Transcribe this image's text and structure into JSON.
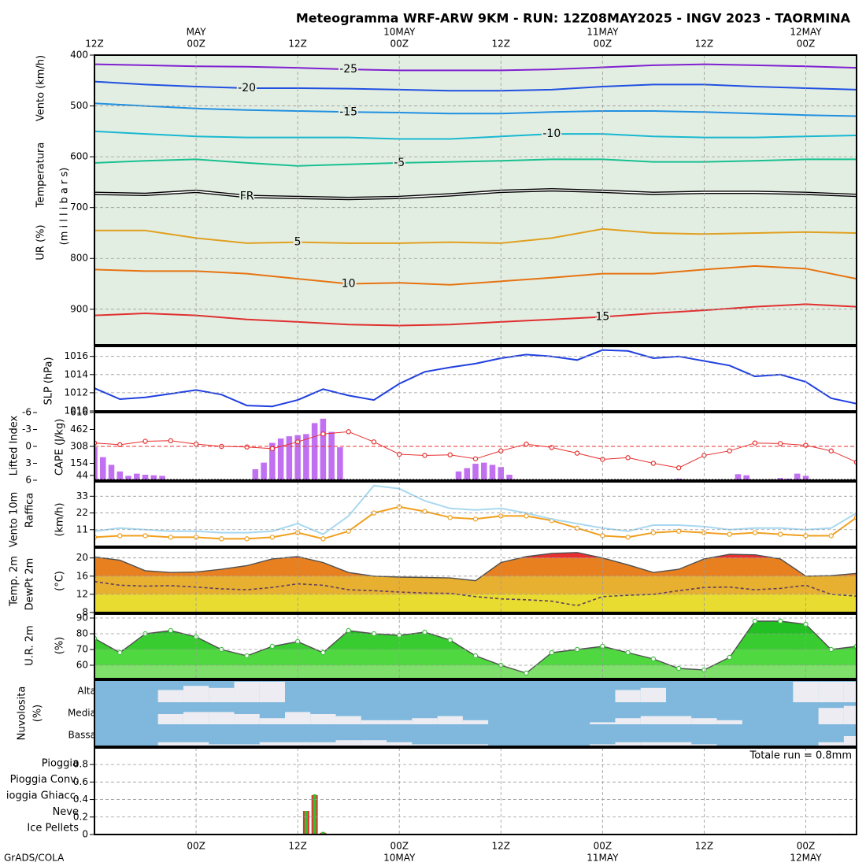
{
  "title": "Meteogramma WRF-ARW 9KM - RUN: 12Z08MAY2025 - INGV 2023 - TAORMINA",
  "footer": "GrADS/COLA",
  "time_axis": {
    "xlim": [
      0,
      90
    ],
    "top_ticks": [
      {
        "value": 0,
        "label": "12Z"
      },
      {
        "value": 12,
        "label": "00Z"
      },
      {
        "value": 24,
        "label": "12Z"
      },
      {
        "value": 36,
        "label": "00Z"
      },
      {
        "value": 48,
        "label": "12Z"
      },
      {
        "value": 60,
        "label": "00Z"
      },
      {
        "value": 72,
        "label": "12Z"
      },
      {
        "value": 84,
        "label": "00Z"
      }
    ],
    "top_dates": [
      {
        "value": 12,
        "label": "MAY"
      },
      {
        "value": 36,
        "label": "10MAY"
      },
      {
        "value": 60,
        "label": "11MAY"
      },
      {
        "value": 84,
        "label": "12MAY"
      }
    ],
    "bottom_ticks": [
      {
        "value": 12,
        "label": "00Z"
      },
      {
        "value": 24,
        "label": "12Z"
      },
      {
        "value": 36,
        "label": "00Z"
      },
      {
        "value": 48,
        "label": "12Z"
      },
      {
        "value": 60,
        "label": "00Z"
      },
      {
        "value": 72,
        "label": "12Z"
      },
      {
        "value": 84,
        "label": "00Z"
      }
    ],
    "bottom_dates": [
      {
        "value": 36,
        "label": "10MAY"
      },
      {
        "value": 60,
        "label": "11MAY"
      },
      {
        "value": 84,
        "label": "12MAY"
      }
    ]
  },
  "chart_data": [
    {
      "type": "line",
      "legend": "contour",
      "background": "#e3eee3",
      "grid": "both",
      "axis_labels": [
        {
          "text": "Vento (km/h)",
          "color": "#000000"
        },
        {
          "text": "Temperatura",
          "color": "#e07020"
        },
        {
          "text": "UR (%)",
          "color": "#000000"
        },
        {
          "text": "(m i l l i b a r s)",
          "color": "#000000"
        }
      ],
      "ylim": [
        970,
        400
      ],
      "yticks": [
        400,
        500,
        600,
        700,
        800,
        900
      ],
      "x": [
        0,
        6,
        12,
        18,
        24,
        30,
        36,
        42,
        48,
        54,
        60,
        66,
        72,
        78,
        84,
        90
      ],
      "series": [
        {
          "name": "-25",
          "color": "#8020d0",
          "values": [
            418,
            420,
            422,
            423,
            425,
            428,
            430,
            430,
            430,
            428,
            424,
            420,
            418,
            420,
            422,
            425
          ]
        },
        {
          "name": "-20",
          "color": "#2050e0",
          "values": [
            452,
            458,
            462,
            465,
            465,
            466,
            468,
            470,
            470,
            468,
            462,
            458,
            458,
            462,
            465,
            468
          ]
        },
        {
          "name": "-15",
          "color": "#2090e0",
          "values": [
            495,
            500,
            505,
            508,
            510,
            512,
            513,
            515,
            515,
            512,
            510,
            510,
            512,
            515,
            518,
            520
          ]
        },
        {
          "name": "-10",
          "color": "#18b8d0",
          "values": [
            550,
            555,
            560,
            562,
            562,
            562,
            565,
            565,
            560,
            555,
            555,
            560,
            562,
            562,
            560,
            558
          ]
        },
        {
          "name": "-5",
          "color": "#18c090",
          "values": [
            612,
            608,
            605,
            612,
            618,
            615,
            612,
            610,
            608,
            605,
            605,
            610,
            610,
            608,
            605,
            605
          ]
        },
        {
          "name": "FR",
          "color": "#000000",
          "double": true,
          "values": [
            672,
            674,
            668,
            678,
            680,
            682,
            680,
            675,
            668,
            665,
            668,
            672,
            670,
            670,
            672,
            676
          ]
        },
        {
          "name": "5",
          "color": "#e0a020",
          "values": [
            745,
            745,
            760,
            770,
            768,
            770,
            770,
            768,
            770,
            760,
            742,
            750,
            752,
            750,
            748,
            750
          ]
        },
        {
          "name": "10",
          "color": "#e67310",
          "values": [
            822,
            825,
            825,
            830,
            840,
            850,
            848,
            852,
            845,
            838,
            830,
            830,
            822,
            815,
            820,
            840
          ]
        },
        {
          "name": "15",
          "color": "#e03030",
          "values": [
            912,
            908,
            912,
            920,
            925,
            930,
            932,
            930,
            925,
            920,
            915,
            908,
            902,
            895,
            890,
            895
          ]
        }
      ]
    },
    {
      "type": "line",
      "legend": "axis",
      "grid": "both",
      "ylim": [
        1010,
        1017.1
      ],
      "yticks": [
        1010,
        1012,
        1014,
        1016
      ],
      "x": [
        0,
        3,
        6,
        9,
        12,
        15,
        18,
        21,
        24,
        27,
        30,
        33,
        36,
        39,
        42,
        45,
        48,
        51,
        54,
        57,
        60,
        63,
        66,
        69,
        72,
        75,
        78,
        81,
        84,
        87,
        90
      ],
      "series": [
        {
          "name": "SLP (hPa)",
          "color": "#2040e0",
          "values": [
            1012.5,
            1011.3,
            1011.5,
            1011.9,
            1012.3,
            1011.8,
            1010.6,
            1010.5,
            1011.2,
            1012.4,
            1011.7,
            1011.2,
            1013.0,
            1014.3,
            1014.8,
            1015.2,
            1015.8,
            1016.2,
            1016.0,
            1015.6,
            1016.7,
            1016.6,
            1015.8,
            1016.0,
            1015.5,
            1015.0,
            1013.8,
            1014.0,
            1013.2,
            1011.4,
            1010.8
          ]
        }
      ]
    },
    {
      "type": "combo",
      "legend": "axis",
      "grid": "x",
      "zero_line": true,
      "ylim": [
        6,
        -6
      ],
      "yticks": [
        -6,
        -3,
        0,
        3,
        6
      ],
      "y2lim": [
        0,
        616
      ],
      "y2ticks": [
        44,
        154,
        308,
        462,
        616
      ],
      "series": [
        {
          "name": "CAPE (J/kg)",
          "type": "bar",
          "axis": "y2",
          "color": "#c070f0",
          "x": [
            0,
            1,
            2,
            3,
            4,
            5,
            6,
            7,
            8,
            19,
            20,
            21,
            22,
            23,
            24,
            25,
            26,
            27,
            28,
            29,
            43,
            44,
            45,
            46,
            47,
            48,
            49,
            69,
            76,
            77,
            80,
            81,
            82,
            83,
            84
          ],
          "values": [
            300,
            210,
            140,
            80,
            40,
            60,
            50,
            45,
            40,
            100,
            160,
            340,
            380,
            400,
            410,
            420,
            520,
            560,
            440,
            300,
            80,
            110,
            150,
            160,
            140,
            120,
            50,
            15,
            55,
            45,
            10,
            20,
            15,
            60,
            40
          ]
        },
        {
          "name": "Lifted Index",
          "type": "line",
          "color": "#e83030",
          "marker": true,
          "x": [
            0,
            3,
            6,
            9,
            12,
            15,
            18,
            21,
            24,
            27,
            30,
            33,
            36,
            39,
            42,
            45,
            48,
            51,
            54,
            57,
            60,
            63,
            66,
            69,
            72,
            75,
            78,
            81,
            84,
            87,
            90
          ],
          "values": [
            -0.6,
            -0.3,
            -0.9,
            -1.0,
            -0.4,
            0,
            0.1,
            0.4,
            -0.8,
            -2.2,
            -2.6,
            -0.8,
            1.4,
            1.6,
            1.5,
            2.2,
            0.8,
            -0.4,
            0.2,
            1.2,
            2.3,
            2.0,
            3.0,
            3.8,
            1.6,
            0.8,
            -0.6,
            -0.5,
            -0.2,
            0.8,
            2.8
          ]
        }
      ]
    },
    {
      "type": "line",
      "legend": "axis",
      "grid": "both",
      "axis_labels": [
        {
          "text": "(km/h)",
          "color": "#000000"
        }
      ],
      "ylim": [
        0,
        42.5
      ],
      "yticks": [
        11,
        22,
        33
      ],
      "x": [
        0,
        3,
        6,
        9,
        12,
        15,
        18,
        21,
        24,
        27,
        30,
        33,
        36,
        39,
        42,
        45,
        48,
        51,
        54,
        57,
        60,
        63,
        66,
        69,
        72,
        75,
        78,
        81,
        84,
        87,
        90
      ],
      "series": [
        {
          "name": "Vento 10m",
          "color": "#f0a020",
          "marker": true,
          "values": [
            6,
            7,
            7,
            6,
            6,
            5,
            5,
            6,
            9,
            5,
            10,
            22,
            26,
            23,
            19,
            18,
            20,
            20,
            17,
            12,
            7,
            6,
            9,
            10,
            9,
            8,
            9,
            8,
            7,
            7,
            19
          ]
        },
        {
          "name": "Raffica",
          "color": "#a8d8f0",
          "values": [
            10,
            12,
            11,
            10,
            10,
            9,
            9,
            10,
            15,
            8,
            20,
            40,
            38,
            30,
            25,
            24,
            25,
            22,
            18,
            15,
            12,
            10,
            14,
            14,
            13,
            11,
            12,
            12,
            11,
            12,
            22
          ]
        }
      ]
    },
    {
      "type": "area",
      "legend": "axis",
      "grid": "both",
      "axis_labels": [
        {
          "text": "(°C)",
          "color": "#000000"
        }
      ],
      "band_colors": [
        "#e8dc30",
        "#e8dc30",
        "#e8b030",
        "#e88020",
        "#e83030"
      ],
      "ylim": [
        8,
        22.2
      ],
      "yticks": [
        8,
        12,
        16,
        20
      ],
      "x": [
        0,
        3,
        6,
        9,
        12,
        15,
        18,
        21,
        24,
        27,
        30,
        33,
        36,
        39,
        42,
        45,
        48,
        51,
        54,
        57,
        60,
        63,
        66,
        69,
        72,
        75,
        78,
        81,
        84,
        87,
        90
      ],
      "series": [
        {
          "name": "Temp. 2m",
          "color": "#703020",
          "values": [
            20.2,
            19.5,
            17.2,
            16.8,
            16.9,
            17.5,
            18.3,
            19.8,
            20.3,
            19.0,
            16.8,
            16.0,
            15.8,
            15.7,
            15.6,
            15.0,
            19.0,
            20.3,
            21.0,
            21.2,
            20.0,
            18.5,
            16.8,
            17.5,
            19.8,
            20.8,
            20.7,
            19.8,
            16.0,
            16.1,
            16.6
          ]
        },
        {
          "name": "DewPt 2m",
          "color": "#604060",
          "dash": true,
          "values": [
            14.8,
            14.0,
            13.8,
            13.9,
            13.6,
            13.2,
            13.0,
            13.5,
            14.3,
            14.0,
            13.0,
            12.8,
            12.5,
            12.3,
            12.2,
            11.5,
            11.0,
            10.8,
            10.5,
            9.5,
            11.5,
            11.8,
            12.0,
            12.8,
            13.5,
            13.6,
            13.0,
            13.3,
            14.0,
            12.0,
            11.6
          ]
        }
      ]
    },
    {
      "type": "area",
      "legend": "axis",
      "grid": "both",
      "axis_labels": [
        {
          "text": "(%)",
          "color": "#000000"
        }
      ],
      "band_colors": [
        "#7ee06a",
        "#50d840",
        "#38cc30",
        "#22c022",
        "#18b018"
      ],
      "ylim": [
        51.5,
        92.5
      ],
      "yticks": [
        60,
        70,
        80,
        90
      ],
      "x": [
        0,
        3,
        6,
        9,
        12,
        15,
        18,
        21,
        24,
        27,
        30,
        33,
        36,
        39,
        42,
        45,
        48,
        51,
        54,
        57,
        60,
        63,
        66,
        69,
        72,
        75,
        78,
        81,
        84,
        87,
        90
      ],
      "series": [
        {
          "name": "U.R. 2m",
          "color": "#40c040",
          "marker": true,
          "values": [
            77,
            68,
            80,
            82,
            78,
            70,
            66,
            72,
            75,
            68,
            82,
            80,
            79,
            81,
            76,
            66,
            60,
            55,
            68,
            70,
            72,
            68,
            64,
            58,
            57,
            65,
            88,
            88,
            86,
            70,
            72
          ]
        }
      ]
    },
    {
      "type": "layers",
      "background": "#7fb8dc",
      "cloud_color": "#ececf2",
      "axis_labels": [
        {
          "text": "Nuvolosita",
          "color": "#3070b0"
        },
        {
          "text": "(%)",
          "color": "#000000"
        }
      ],
      "ylim": [
        0,
        100
      ],
      "x": [
        0,
        3,
        6,
        9,
        12,
        15,
        18,
        21,
        24,
        27,
        30,
        33,
        36,
        39,
        42,
        45,
        48,
        51,
        54,
        57,
        60,
        63,
        66,
        69,
        72,
        75,
        78,
        81,
        84,
        87,
        90
      ],
      "series": [
        {
          "name": "Alta",
          "values": [
            0,
            0,
            0,
            60,
            80,
            70,
            100,
            100,
            0,
            0,
            0,
            0,
            0,
            0,
            0,
            0,
            0,
            0,
            0,
            0,
            0,
            60,
            70,
            0,
            0,
            0,
            0,
            0,
            100,
            100,
            100
          ]
        },
        {
          "name": "Media",
          "values": [
            0,
            0,
            0,
            50,
            60,
            60,
            50,
            30,
            60,
            50,
            40,
            20,
            20,
            30,
            40,
            20,
            0,
            0,
            0,
            0,
            10,
            30,
            40,
            40,
            30,
            20,
            0,
            0,
            0,
            80,
            90
          ]
        },
        {
          "name": "Bassa",
          "values": [
            0,
            0,
            0,
            20,
            20,
            10,
            10,
            20,
            20,
            20,
            30,
            30,
            20,
            10,
            10,
            10,
            0,
            0,
            0,
            0,
            10,
            20,
            20,
            20,
            10,
            0,
            0,
            0,
            0,
            20,
            50
          ]
        }
      ]
    },
    {
      "type": "bar",
      "legend": "left",
      "grid": "both",
      "note": "Totale run = 0.8mm",
      "ylim": [
        0,
        0.99
      ],
      "yticks": [
        0,
        0.2,
        0.4,
        0.6,
        0.8
      ],
      "x": [
        25,
        26,
        27,
        88
      ],
      "series": [
        {
          "name": "Pioggia",
          "color": "#30c030",
          "values": [
            0.27,
            0.46,
            0.03,
            0.01
          ]
        },
        {
          "name": "Pioggia Conv.",
          "color": "#e83030",
          "values": [
            0.27,
            0.45,
            0.02,
            0
          ]
        }
      ],
      "legend_extra": [
        {
          "name": "ioggia Ghiacc.",
          "color": "#e87820"
        },
        {
          "name": "Neve",
          "color": "#2030e0"
        },
        {
          "name": "Ice Pellets",
          "color": "#20c8d0"
        }
      ]
    }
  ]
}
